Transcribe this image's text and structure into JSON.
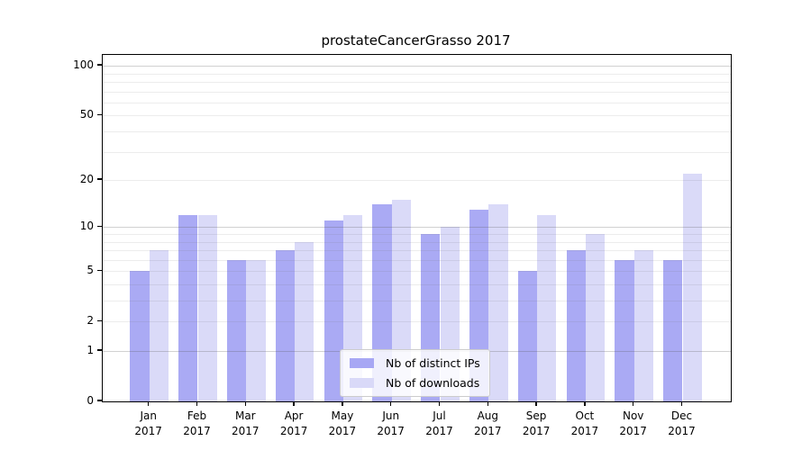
{
  "title": "prostateCancerGrasso 2017",
  "chart_data": {
    "type": "bar",
    "title": "prostateCancerGrasso 2017",
    "categories": [
      "Jan",
      "Feb",
      "Mar",
      "Apr",
      "May",
      "Jun",
      "Jul",
      "Aug",
      "Sep",
      "Oct",
      "Nov",
      "Dec"
    ],
    "x_year_label": "2017",
    "series": [
      {
        "name": "Nb of distinct IPs",
        "color": "#A7A7F4",
        "values": [
          5,
          12,
          6,
          7,
          11,
          14,
          9,
          13,
          5,
          7,
          6,
          6
        ]
      },
      {
        "name": "Nb of downloads",
        "color": "#D9D9F8",
        "values": [
          7,
          12,
          6,
          8,
          12,
          15,
          10,
          14,
          12,
          9,
          7,
          22
        ]
      }
    ],
    "xlabel": "",
    "ylabel": "",
    "y_axis": {
      "scale": "log1p",
      "tick_values": [
        0,
        1,
        2,
        5,
        10,
        20,
        50,
        100
      ],
      "tick_labels": [
        "0",
        "1",
        "2",
        "5",
        "10",
        "20",
        "50",
        "100"
      ],
      "minor_grid_values": [
        2,
        3,
        4,
        5,
        6,
        7,
        8,
        9,
        20,
        30,
        40,
        50,
        60,
        70,
        80,
        90
      ],
      "major_grid_values": [
        1,
        10,
        100
      ],
      "ylim_max": 115
    },
    "legend": {
      "position": "lower-center",
      "entries": [
        "Nb of distinct IPs",
        "Nb of downloads"
      ]
    },
    "grid": true
  },
  "colors": {
    "background": "#FFFFFF",
    "spine": "#000000",
    "major_grid": "#C9C9C9",
    "minor_grid": "#ECECEC",
    "distinct_ips_bar": "#A7A7F4",
    "downloads_bar": "#D9D9F8"
  }
}
